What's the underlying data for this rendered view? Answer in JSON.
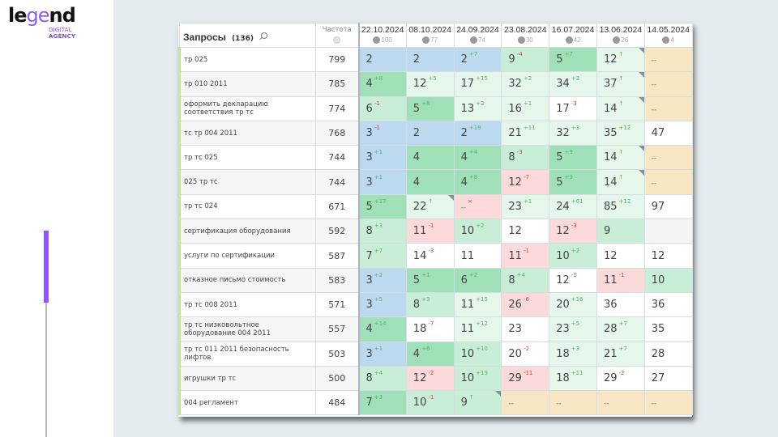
{
  "brand": {
    "logo_word_a": "le",
    "logo_word_b": "ge",
    "logo_word_c": "nd",
    "logo_sub_1": "DIGITAL",
    "logo_sub_2": "AGENCY",
    "accent_color": "#9155fa"
  },
  "table": {
    "query_header": "Запросы",
    "query_count": "(136)",
    "freq_header": "Частота",
    "columns": [
      {
        "date": "22.10.2024",
        "visibility": "100"
      },
      {
        "date": "08.10.2024",
        "visibility": "77"
      },
      {
        "date": "24.09.2024",
        "visibility": "74"
      },
      {
        "date": "23.08.2024",
        "visibility": "30"
      },
      {
        "date": "16.07.2024",
        "visibility": "42"
      },
      {
        "date": "13.06.2024",
        "visibility": "26"
      },
      {
        "date": "14.05.2024",
        "visibility": "4"
      }
    ],
    "rows": [
      {
        "query": "тр 025",
        "freq": "799",
        "cells": [
          {
            "v": "2",
            "ch": "",
            "dir": "",
            "c": "blue"
          },
          {
            "v": "2",
            "ch": "",
            "dir": "",
            "c": "blue"
          },
          {
            "v": "2",
            "ch": "+7",
            "dir": "up",
            "c": "blue"
          },
          {
            "v": "9",
            "ch": "-4",
            "dir": "down",
            "c": "lgreen"
          },
          {
            "v": "5",
            "ch": "+7",
            "dir": "up",
            "c": "green"
          },
          {
            "v": "12",
            "ch": "↑",
            "dir": "arrow",
            "c": "pale",
            "corner": true
          },
          {
            "v": "--",
            "ch": "",
            "dir": "",
            "c": "sand"
          }
        ]
      },
      {
        "query": "тр 010 2011",
        "freq": "785",
        "cells": [
          {
            "v": "4",
            "ch": "+8",
            "dir": "up",
            "c": "green"
          },
          {
            "v": "12",
            "ch": "+5",
            "dir": "up",
            "c": "pale"
          },
          {
            "v": "17",
            "ch": "+15",
            "dir": "up",
            "c": "pale"
          },
          {
            "v": "32",
            "ch": "+2",
            "dir": "up",
            "c": "pale"
          },
          {
            "v": "34",
            "ch": "+3",
            "dir": "up",
            "c": "pale"
          },
          {
            "v": "37",
            "ch": "↑",
            "dir": "arrow",
            "c": "pale",
            "corner": true
          },
          {
            "v": "--",
            "ch": "",
            "dir": "",
            "c": "sand"
          }
        ]
      },
      {
        "query": "оформить декларацию соответствия тр тс",
        "freq": "774",
        "cells": [
          {
            "v": "6",
            "ch": "-1",
            "dir": "down",
            "c": "lgreen"
          },
          {
            "v": "5",
            "ch": "+8",
            "dir": "up",
            "c": "green"
          },
          {
            "v": "13",
            "ch": "+3",
            "dir": "up",
            "c": "pale"
          },
          {
            "v": "16",
            "ch": "+1",
            "dir": "up",
            "c": "pale"
          },
          {
            "v": "17",
            "ch": "-3",
            "dir": "down",
            "c": "white"
          },
          {
            "v": "14",
            "ch": "↑",
            "dir": "arrow",
            "c": "pale",
            "corner": true
          },
          {
            "v": "--",
            "ch": "",
            "dir": "",
            "c": "sand"
          }
        ]
      },
      {
        "query": "тс тр 004 2011",
        "freq": "768",
        "cells": [
          {
            "v": "3",
            "ch": "-1",
            "dir": "down",
            "c": "blue"
          },
          {
            "v": "2",
            "ch": "",
            "dir": "",
            "c": "blue"
          },
          {
            "v": "2",
            "ch": "+19",
            "dir": "up",
            "c": "blue"
          },
          {
            "v": "21",
            "ch": "+11",
            "dir": "up",
            "c": "pale"
          },
          {
            "v": "32",
            "ch": "+3",
            "dir": "up",
            "c": "pale"
          },
          {
            "v": "35",
            "ch": "+12",
            "dir": "up",
            "c": "pale"
          },
          {
            "v": "47",
            "ch": "",
            "dir": "",
            "c": "white"
          }
        ]
      },
      {
        "query": "тр тс 025",
        "freq": "744",
        "cells": [
          {
            "v": "3",
            "ch": "+1",
            "dir": "up",
            "c": "blue"
          },
          {
            "v": "4",
            "ch": "",
            "dir": "",
            "c": "green"
          },
          {
            "v": "4",
            "ch": "+4",
            "dir": "up",
            "c": "green"
          },
          {
            "v": "8",
            "ch": "-3",
            "dir": "down",
            "c": "lgreen"
          },
          {
            "v": "5",
            "ch": "+9",
            "dir": "up",
            "c": "green"
          },
          {
            "v": "14",
            "ch": "↑",
            "dir": "arrow",
            "c": "pale",
            "corner": true
          },
          {
            "v": "--",
            "ch": "",
            "dir": "",
            "c": "sand"
          }
        ]
      },
      {
        "query": "025 тр тс",
        "freq": "744",
        "cells": [
          {
            "v": "3",
            "ch": "+1",
            "dir": "up",
            "c": "blue"
          },
          {
            "v": "4",
            "ch": "",
            "dir": "",
            "c": "green"
          },
          {
            "v": "4",
            "ch": "+8",
            "dir": "up",
            "c": "green"
          },
          {
            "v": "12",
            "ch": "-7",
            "dir": "down",
            "c": "red"
          },
          {
            "v": "5",
            "ch": "+9",
            "dir": "up",
            "c": "green"
          },
          {
            "v": "14",
            "ch": "↑",
            "dir": "arrow",
            "c": "pale",
            "corner": true
          },
          {
            "v": "--",
            "ch": "",
            "dir": "",
            "c": "sand"
          }
        ]
      },
      {
        "query": "тр тс 024",
        "freq": "671",
        "cells": [
          {
            "v": "5",
            "ch": "+17",
            "dir": "up",
            "c": "green"
          },
          {
            "v": "22",
            "ch": "↑",
            "dir": "arrow",
            "c": "pale",
            "corner": true
          },
          {
            "v": "--",
            "ch": "×",
            "dir": "down",
            "c": "red"
          },
          {
            "v": "23",
            "ch": "+1",
            "dir": "up",
            "c": "pale"
          },
          {
            "v": "24",
            "ch": "+61",
            "dir": "up",
            "c": "pale"
          },
          {
            "v": "85",
            "ch": "+12",
            "dir": "up",
            "c": "pale"
          },
          {
            "v": "97",
            "ch": "",
            "dir": "",
            "c": "white"
          }
        ]
      },
      {
        "query": "сертификация оборудования",
        "freq": "592",
        "cells": [
          {
            "v": "8",
            "ch": "+3",
            "dir": "up",
            "c": "lgreen"
          },
          {
            "v": "11",
            "ch": "-1",
            "dir": "down",
            "c": "red"
          },
          {
            "v": "10",
            "ch": "+2",
            "dir": "up",
            "c": "lgreen"
          },
          {
            "v": "12",
            "ch": "",
            "dir": "",
            "c": "white"
          },
          {
            "v": "12",
            "ch": "-3",
            "dir": "down",
            "c": "red"
          },
          {
            "v": "9",
            "ch": "",
            "dir": "",
            "c": "lgreen"
          },
          {
            "v": "",
            "ch": "",
            "dir": "",
            "c": "grey"
          }
        ]
      },
      {
        "query": "услуги по сертификации",
        "freq": "587",
        "cells": [
          {
            "v": "7",
            "ch": "+7",
            "dir": "up",
            "c": "lgreen"
          },
          {
            "v": "14",
            "ch": "-3",
            "dir": "down",
            "c": "white"
          },
          {
            "v": "11",
            "ch": "",
            "dir": "",
            "c": "white"
          },
          {
            "v": "11",
            "ch": "-1",
            "dir": "down",
            "c": "red"
          },
          {
            "v": "10",
            "ch": "+2",
            "dir": "up",
            "c": "lgreen"
          },
          {
            "v": "12",
            "ch": "",
            "dir": "",
            "c": "white"
          },
          {
            "v": "12",
            "ch": "",
            "dir": "",
            "c": "white"
          }
        ]
      },
      {
        "query": "отказное письмо стоимость",
        "freq": "583",
        "cells": [
          {
            "v": "3",
            "ch": "+2",
            "dir": "up",
            "c": "blue"
          },
          {
            "v": "5",
            "ch": "+1",
            "dir": "up",
            "c": "green"
          },
          {
            "v": "6",
            "ch": "+2",
            "dir": "up",
            "c": "green"
          },
          {
            "v": "8",
            "ch": "+4",
            "dir": "up",
            "c": "lgreen"
          },
          {
            "v": "12",
            "ch": "-1",
            "dir": "down",
            "c": "white"
          },
          {
            "v": "11",
            "ch": "-1",
            "dir": "down",
            "c": "red"
          },
          {
            "v": "10",
            "ch": "",
            "dir": "",
            "c": "lgreen"
          }
        ]
      },
      {
        "query": "тр тс 008 2011",
        "freq": "571",
        "cells": [
          {
            "v": "3",
            "ch": "+5",
            "dir": "up",
            "c": "blue"
          },
          {
            "v": "8",
            "ch": "+3",
            "dir": "up",
            "c": "lgreen"
          },
          {
            "v": "11",
            "ch": "+15",
            "dir": "up",
            "c": "pale"
          },
          {
            "v": "26",
            "ch": "-6",
            "dir": "down",
            "c": "red"
          },
          {
            "v": "20",
            "ch": "+16",
            "dir": "up",
            "c": "pale"
          },
          {
            "v": "36",
            "ch": "",
            "dir": "",
            "c": "white"
          },
          {
            "v": "36",
            "ch": "",
            "dir": "",
            "c": "white"
          }
        ]
      },
      {
        "query": "тр тс низковольтное оборудование 004 2011",
        "freq": "557",
        "cells": [
          {
            "v": "4",
            "ch": "+14",
            "dir": "up",
            "c": "green"
          },
          {
            "v": "18",
            "ch": "-7",
            "dir": "down",
            "c": "white"
          },
          {
            "v": "11",
            "ch": "+12",
            "dir": "up",
            "c": "pale"
          },
          {
            "v": "23",
            "ch": "",
            "dir": "",
            "c": "white"
          },
          {
            "v": "23",
            "ch": "+5",
            "dir": "up",
            "c": "pale"
          },
          {
            "v": "28",
            "ch": "+7",
            "dir": "up",
            "c": "pale"
          },
          {
            "v": "35",
            "ch": "",
            "dir": "",
            "c": "white"
          }
        ]
      },
      {
        "query": "тр тс 011 2011 безопасность лифтов",
        "freq": "503",
        "cells": [
          {
            "v": "3",
            "ch": "+1",
            "dir": "up",
            "c": "blue"
          },
          {
            "v": "4",
            "ch": "+6",
            "dir": "up",
            "c": "green"
          },
          {
            "v": "10",
            "ch": "+10",
            "dir": "up",
            "c": "lgreen"
          },
          {
            "v": "20",
            "ch": "-2",
            "dir": "down",
            "c": "white"
          },
          {
            "v": "18",
            "ch": "+3",
            "dir": "up",
            "c": "pale"
          },
          {
            "v": "21",
            "ch": "+7",
            "dir": "up",
            "c": "pale"
          },
          {
            "v": "28",
            "ch": "",
            "dir": "",
            "c": "white"
          }
        ]
      },
      {
        "query": "игрушки тр тс",
        "freq": "500",
        "cells": [
          {
            "v": "8",
            "ch": "+4",
            "dir": "up",
            "c": "lgreen"
          },
          {
            "v": "12",
            "ch": "-2",
            "dir": "down",
            "c": "red"
          },
          {
            "v": "10",
            "ch": "+19",
            "dir": "up",
            "c": "lgreen"
          },
          {
            "v": "29",
            "ch": "-11",
            "dir": "down",
            "c": "red"
          },
          {
            "v": "18",
            "ch": "+11",
            "dir": "up",
            "c": "pale"
          },
          {
            "v": "29",
            "ch": "-2",
            "dir": "down",
            "c": "white"
          },
          {
            "v": "27",
            "ch": "",
            "dir": "",
            "c": "white"
          }
        ]
      },
      {
        "query": "004 регламент",
        "freq": "484",
        "cells": [
          {
            "v": "7",
            "ch": "+3",
            "dir": "up",
            "c": "green"
          },
          {
            "v": "10",
            "ch": "-1",
            "dir": "down",
            "c": "lgreen"
          },
          {
            "v": "9",
            "ch": "↑",
            "dir": "arrow",
            "c": "lgreen",
            "corner": true
          },
          {
            "v": "--",
            "ch": "",
            "dir": "",
            "c": "sand"
          },
          {
            "v": "--",
            "ch": "",
            "dir": "",
            "c": "sand"
          },
          {
            "v": "--",
            "ch": "",
            "dir": "",
            "c": "sand"
          },
          {
            "v": "--",
            "ch": "",
            "dir": "",
            "c": "sand"
          }
        ]
      }
    ]
  }
}
